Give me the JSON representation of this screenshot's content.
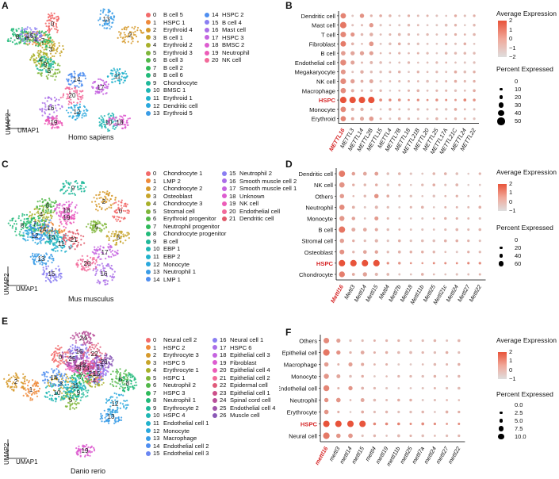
{
  "panels": {
    "A": {
      "letter": "A",
      "species": "Homo sapiens",
      "xlab": "UMAP1",
      "ylab": "UMAP2",
      "legend": [
        [
          "0",
          "B cell 5",
          "#f26a6a"
        ],
        [
          "1",
          "HSPC 1",
          "#ef8a3a"
        ],
        [
          "2",
          "Erythroid 4",
          "#d69a2c"
        ],
        [
          "3",
          "B cell 1",
          "#c7a52a"
        ],
        [
          "4",
          "Erythroid 2",
          "#a8b02a"
        ],
        [
          "5",
          "Erythroid 3",
          "#7fb63a"
        ],
        [
          "6",
          "B cell 3",
          "#52b84a"
        ],
        [
          "7",
          "B cell 2",
          "#2fba5a"
        ],
        [
          "8",
          "B cell 6",
          "#22ba7a"
        ],
        [
          "9",
          "Chondrocyte",
          "#20b89a"
        ],
        [
          "10",
          "BMSC 1",
          "#20b6b4"
        ],
        [
          "11",
          "Erythroid 1",
          "#22b2cc"
        ],
        [
          "12",
          "Dendritic cell",
          "#2aa8dd"
        ],
        [
          "13",
          "Erythroid 5",
          "#3a9ce6"
        ],
        [
          "14",
          "HSPC 2",
          "#4f8ef0"
        ],
        [
          "15",
          "B cell 4",
          "#8a7ef2"
        ],
        [
          "16",
          "Mast cell",
          "#aa6ee8"
        ],
        [
          "17",
          "HSPC 3",
          "#c564e0"
        ],
        [
          "18",
          "BMSC 2",
          "#dd5cd0"
        ],
        [
          "19",
          "Neutrophil",
          "#ec5cb8"
        ],
        [
          "20",
          "NK cell",
          "#f26a9a"
        ]
      ],
      "labels": [
        [
          "0",
          62,
          22
        ],
        [
          "1",
          41,
          41
        ],
        [
          "2",
          160,
          36
        ],
        [
          "3",
          60,
          54
        ],
        [
          "4",
          47,
          67
        ],
        [
          "5",
          58,
          81
        ],
        [
          "6",
          30,
          40
        ],
        [
          "7",
          50,
          43
        ],
        [
          "8",
          18,
          38
        ],
        [
          "9",
          53,
          73
        ],
        [
          "10",
          133,
          146
        ],
        [
          "11",
          144,
          88
        ],
        [
          "12",
          93,
          133
        ],
        [
          "13",
          130,
          16
        ],
        [
          "14",
          93,
          92
        ],
        [
          "15",
          34,
          37
        ],
        [
          "16",
          60,
          128
        ],
        [
          "17",
          123,
          102
        ],
        [
          "18",
          147,
          146
        ],
        [
          "19",
          64,
          146
        ],
        [
          "20",
          87,
          112
        ]
      ]
    },
    "C": {
      "letter": "C",
      "species": "Mus musculus",
      "xlab": "UMAP1",
      "ylab": "UMAP2",
      "legend": [
        [
          "0",
          "Chondrocyte 1",
          "#f26a6a"
        ],
        [
          "1",
          "LMP 2",
          "#ef8a3a"
        ],
        [
          "2",
          "Chondrocyte 2",
          "#d69a2c"
        ],
        [
          "3",
          "Osteoblast",
          "#c7a52a"
        ],
        [
          "4",
          "Chondrocyte 3",
          "#a8b02a"
        ],
        [
          "5",
          "Stromal cell",
          "#7fb63a"
        ],
        [
          "6",
          "Erythroid progenitor",
          "#52b84a"
        ],
        [
          "7",
          "Neutrophil progenitor",
          "#2fba5a"
        ],
        [
          "8",
          "Chondrocyte progenitor",
          "#22ba7a"
        ],
        [
          "9",
          "B cell",
          "#20b89a"
        ],
        [
          "10",
          "EBP 1",
          "#20b6b4"
        ],
        [
          "11",
          "EBP 2",
          "#22b2cc"
        ],
        [
          "12",
          "Monocyte",
          "#2aa8dd"
        ],
        [
          "13",
          "Neutrophil 1",
          "#3a9ce6"
        ],
        [
          "14",
          "LMP 1",
          "#4f8ef0"
        ],
        [
          "15",
          "Neutrophil 2",
          "#8a7ef2"
        ],
        [
          "16",
          "Smooth muscle cell 2",
          "#aa6ee8"
        ],
        [
          "17",
          "Smooth muscle cell 1",
          "#c564e0"
        ],
        [
          "18",
          "Unknown",
          "#dd5cd0"
        ],
        [
          "19",
          "NK cell",
          "#ec5cb8"
        ],
        [
          "20",
          "Endothelial cell",
          "#f26a9a"
        ],
        [
          "21",
          "Dendritic cell",
          "#e05a6a"
        ]
      ],
      "labels": [
        [
          "0",
          148,
          60
        ],
        [
          "1",
          62,
          83
        ],
        [
          "2",
          127,
          48
        ],
        [
          "3",
          145,
          93
        ],
        [
          "4",
          48,
          64
        ],
        [
          "5",
          118,
          80
        ],
        [
          "6",
          56,
          53
        ],
        [
          "7",
          40,
          76
        ],
        [
          "8",
          24,
          78
        ],
        [
          "9",
          88,
          31
        ],
        [
          "10",
          61,
          93
        ],
        [
          "11",
          73,
          101
        ],
        [
          "12",
          40,
          91
        ],
        [
          "13",
          48,
          120
        ],
        [
          "14",
          50,
          83
        ],
        [
          "15",
          61,
          139
        ],
        [
          "16",
          127,
          139
        ],
        [
          "17",
          128,
          112
        ],
        [
          "18",
          80,
          59
        ],
        [
          "19",
          80,
          68
        ],
        [
          "20",
          106,
          126
        ],
        [
          "21",
          89,
          96
        ]
      ]
    },
    "E": {
      "letter": "E",
      "species": "Danio rerio",
      "xlab": "UMAP1",
      "ylab": "UMAP2",
      "legend": [
        [
          "0",
          "Neural cell 2",
          "#f26a6a"
        ],
        [
          "1",
          "HSPC 2",
          "#ef8a3a"
        ],
        [
          "2",
          "Erythrocyte 3",
          "#d69a2c"
        ],
        [
          "3",
          "HSPC 5",
          "#c7a52a"
        ],
        [
          "4",
          "Erythrocyte 1",
          "#a8b02a"
        ],
        [
          "5",
          "HSPC 1",
          "#7fb63a"
        ],
        [
          "6",
          "Neutrophil 2",
          "#52b84a"
        ],
        [
          "7",
          "HSPC 3",
          "#2fba5a"
        ],
        [
          "8",
          "Neutrophil 1",
          "#22ba7a"
        ],
        [
          "9",
          "Erythrocyte 2",
          "#20b89a"
        ],
        [
          "10",
          "HSPC 4",
          "#20b6b4"
        ],
        [
          "11",
          "Endothelial cell 1",
          "#22b2cc"
        ],
        [
          "12",
          "Monocyte",
          "#2aa8dd"
        ],
        [
          "13",
          "Macrophage",
          "#3a9ce6"
        ],
        [
          "14",
          "Endothelial cell 2",
          "#4f8ef0"
        ],
        [
          "15",
          "Endothelial cell 3",
          "#6a86f2"
        ],
        [
          "16",
          "Neural cell 1",
          "#8a7ef2"
        ],
        [
          "17",
          "HSPC 6",
          "#aa6ee8"
        ],
        [
          "18",
          "Epithelial cell 3",
          "#c564e0"
        ],
        [
          "19",
          "Fibroblast",
          "#dd5cd0"
        ],
        [
          "20",
          "Epithelial cell 4",
          "#ec5cb8"
        ],
        [
          "21",
          "Epithelial cell 2",
          "#f26a9a"
        ],
        [
          "22",
          "Epidermal cell",
          "#e05a7a"
        ],
        [
          "23",
          "Epithelial cell 1",
          "#cc4f8a"
        ],
        [
          "24",
          "Spinal cord cell",
          "#b8509a"
        ],
        [
          "25",
          "Endothelial cell 4",
          "#a054aa"
        ],
        [
          "26",
          "Muscle cell",
          "#8a58b6"
        ]
      ],
      "labels": [
        [
          "0",
          72,
          34
        ],
        [
          "1",
          35,
          75
        ],
        [
          "2",
          16,
          65
        ],
        [
          "3",
          73,
          68
        ],
        [
          "4",
          115,
          64
        ],
        [
          "5",
          85,
          88
        ],
        [
          "6",
          148,
          62
        ],
        [
          "7",
          98,
          59
        ],
        [
          "8",
          157,
          67
        ],
        [
          "9",
          95,
          79
        ],
        [
          "10",
          68,
          79
        ],
        [
          "11",
          91,
          70
        ],
        [
          "12",
          141,
          93
        ],
        [
          "13",
          136,
          109
        ],
        [
          "14",
          64,
          60
        ],
        [
          "15",
          118,
          55
        ],
        [
          "16",
          96,
          27
        ],
        [
          "17",
          122,
          47
        ],
        [
          "18",
          100,
          44
        ],
        [
          "19",
          103,
          152
        ],
        [
          "20",
          94,
          47
        ],
        [
          "21",
          112,
          55
        ],
        [
          "22",
          115,
          30
        ],
        [
          "23",
          104,
          48
        ],
        [
          "24",
          101,
          10
        ],
        [
          "25",
          87,
          36
        ],
        [
          "26",
          127,
          40
        ]
      ]
    },
    "B": {
      "letter": "B",
      "xlab_genes": [
        "METTL16",
        "METTL3",
        "METTL14",
        "METTL2B",
        "METTL15",
        "METTL4",
        "METTL7B",
        "METTL18",
        "METTL21B",
        "METTL20",
        "METTL25",
        "METTL17A",
        "METTL21C",
        "METTL24",
        "METTL22"
      ],
      "highlight_gene": "METTL16",
      "highlight_row": "HSPC",
      "rows": [
        "Dendritic cell",
        "Mast cell",
        "T cell",
        "Fibroblast",
        "B cell",
        "Endothelial cell",
        "Megakaryocyte",
        "NK cell",
        "Macrophage",
        "HSPC",
        "Monocyte",
        "Erythroid"
      ],
      "expr_title": "Average Expression",
      "expr_ticks": [
        "2",
        "1",
        "0",
        "−1",
        "−2"
      ],
      "pct_title": "Percent Expressed",
      "pct_ticks": [
        "0",
        "10",
        "20",
        "30",
        "40",
        "50"
      ]
    },
    "D": {
      "letter": "D",
      "xlab_genes": [
        "Mettl16",
        "Mettl3",
        "Mettl14",
        "Mettl15",
        "Mettl4",
        "Mettl7b",
        "Mettl18",
        "Mettl11b",
        "Mettl25",
        "Mettl21c",
        "Mettl24",
        "Mettl27",
        "Mettl22"
      ],
      "highlight_gene": "Mettl16",
      "highlight_row": "HSPC",
      "rows": [
        "Dendritic cell",
        "NK cell",
        "Others",
        "Neutrophil",
        "Monocyte",
        "B cell",
        "Stromal cell",
        "Osteoblast",
        "HSPC",
        "Chondrocyte"
      ],
      "expr_title": "Average Expression",
      "expr_ticks": [
        "2",
        "1",
        "0",
        "−1"
      ],
      "pct_title": "Percent Expressed",
      "pct_ticks": [
        "0",
        "20",
        "40",
        "60"
      ]
    },
    "F": {
      "letter": "F",
      "xlab_genes": [
        "mettl16",
        "mettl3",
        "mettl14",
        "mettl15",
        "mettl4",
        "mettl19",
        "mettl11b",
        "mettl25",
        "mettl7a",
        "mettl24",
        "mettl27",
        "mettl22"
      ],
      "highlight_gene": "mettl16",
      "highlight_row": "HSPC",
      "rows": [
        "Others",
        "Epithelial cell",
        "Macrophage",
        "Monocyte",
        "Endothelial cell",
        "Neutrophil",
        "Erythrocyte",
        "HSPC",
        "Neural cell"
      ],
      "expr_title": "Average Expression",
      "expr_ticks": [
        "2",
        "1",
        "0",
        "−1"
      ],
      "pct_title": "Percent Expressed",
      "pct_ticks": [
        "0.0",
        "2.5",
        "5.0",
        "7.5",
        "10.0"
      ]
    }
  }
}
